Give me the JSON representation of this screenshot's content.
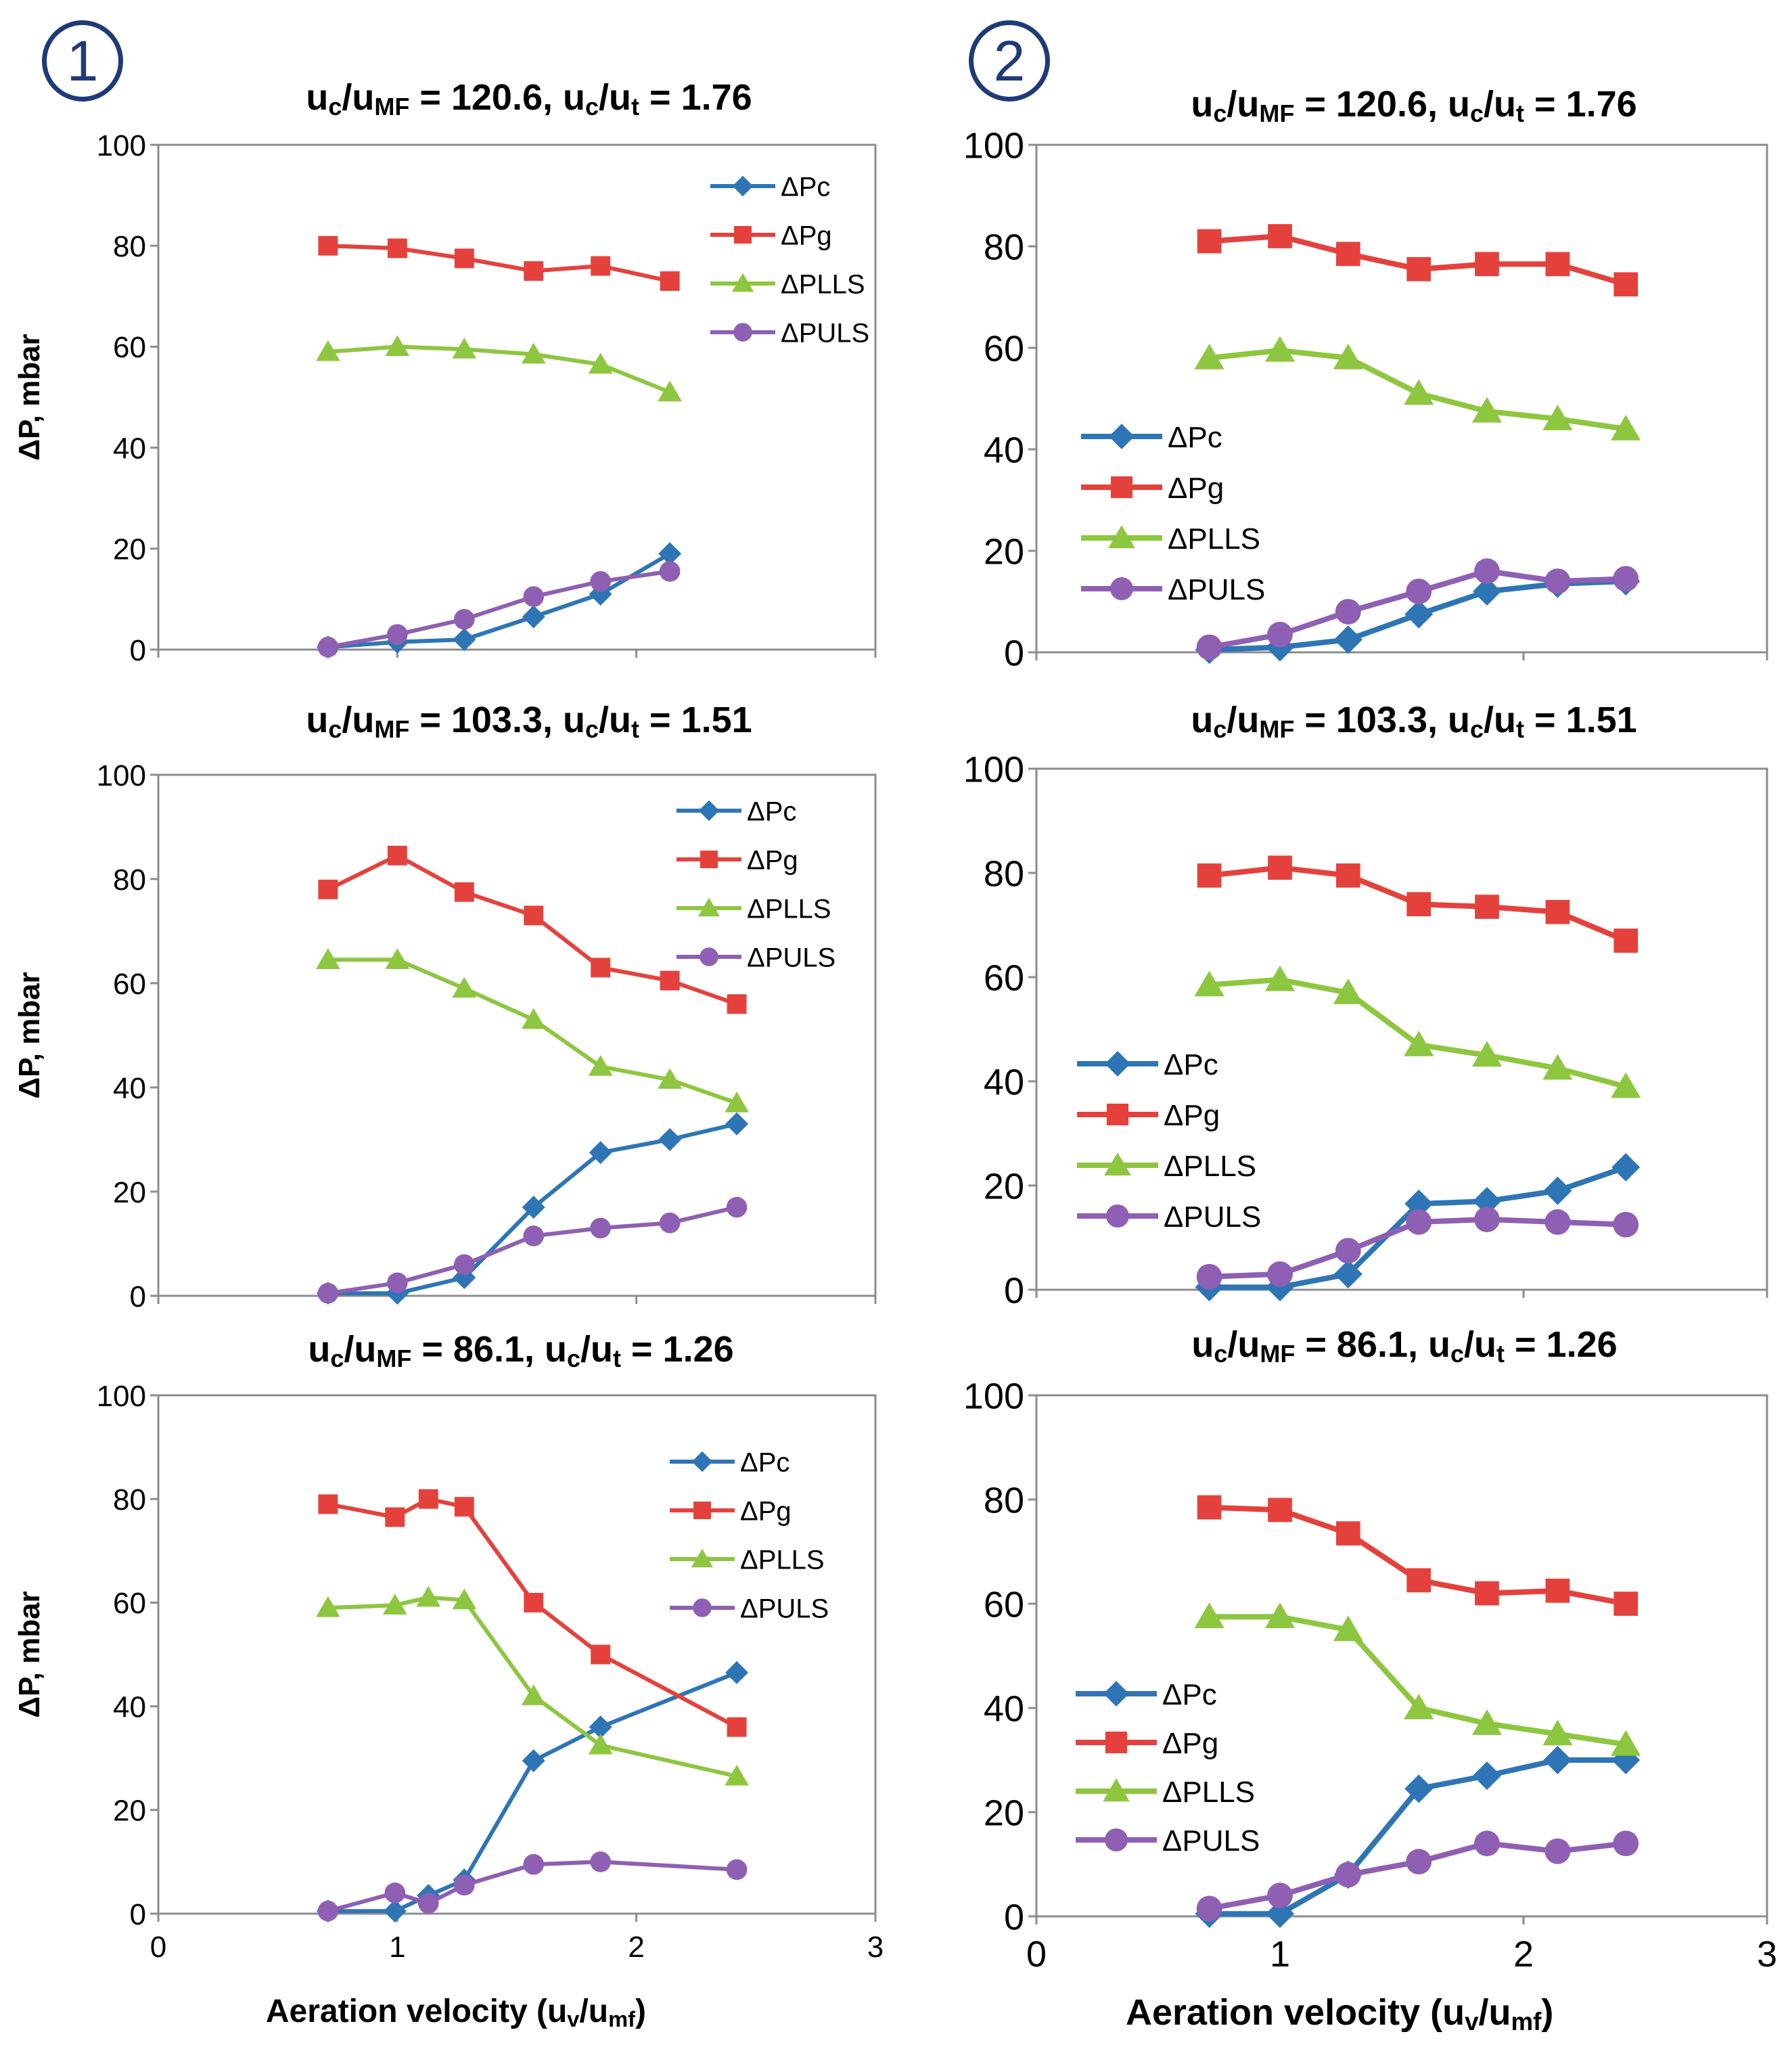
{
  "figure": {
    "column_labels": [
      "1",
      "2"
    ],
    "colors": {
      "dPc": "#2e75b6",
      "dPg": "#e5413c",
      "dPLLS": "#8dc63f",
      "dPULS": "#8e5fb3",
      "frame": "#8c8c8c",
      "text": "#000000"
    }
  },
  "chart_data": [
    {
      "type": "line",
      "panel": "col1-row1",
      "title": {
        "a": "u",
        "a_sub": "c",
        "b": "/u",
        "b_sub": "MF",
        "c": " = 120.6, u",
        "c_sub": "c",
        "d": "/u",
        "d_sub": "t",
        "e": " = 1.76"
      },
      "ylabel": "ΔP, mbar",
      "xlabel": "",
      "xlim": [
        0,
        3
      ],
      "ylim": [
        0,
        100
      ],
      "xticks": [
        "0",
        "1",
        "2",
        "3"
      ],
      "yticks": [
        "0",
        "20",
        "40",
        "60",
        "80",
        "100"
      ],
      "show_xticks": false,
      "legend": "top-right",
      "series": [
        {
          "name": "ΔPc",
          "marker": "diamond",
          "x": [
            0.71,
            1.0,
            1.28,
            1.57,
            1.85,
            2.14
          ],
          "y": [
            0.5,
            1.5,
            2,
            6.5,
            11,
            19
          ]
        },
        {
          "name": "ΔPg",
          "marker": "square",
          "x": [
            0.71,
            1.0,
            1.28,
            1.57,
            1.85,
            2.14
          ],
          "y": [
            80,
            79.5,
            77.5,
            75,
            76,
            73
          ]
        },
        {
          "name": "ΔPLLS",
          "marker": "triangle",
          "x": [
            0.71,
            1.0,
            1.28,
            1.57,
            1.85,
            2.14
          ],
          "y": [
            59,
            60,
            59.5,
            58.5,
            56.5,
            51
          ]
        },
        {
          "name": "ΔPULS",
          "marker": "circle",
          "x": [
            0.71,
            1.0,
            1.28,
            1.57,
            1.85,
            2.14
          ],
          "y": [
            0.5,
            3,
            6,
            10.5,
            13.5,
            15.5
          ]
        }
      ]
    },
    {
      "type": "line",
      "panel": "col2-row1",
      "title": {
        "a": "u",
        "a_sub": "c",
        "b": "/u",
        "b_sub": "MF",
        "c": " = 120.6, u",
        "c_sub": "c",
        "d": "/u",
        "d_sub": "t",
        "e": " = 1.76"
      },
      "ylabel": "",
      "xlabel": "",
      "xlim": [
        0,
        3
      ],
      "ylim": [
        0,
        100
      ],
      "xticks": [
        "0",
        "1",
        "2",
        "3"
      ],
      "yticks": [
        "0",
        "20",
        "40",
        "60",
        "80",
        "100"
      ],
      "show_xticks": false,
      "legend": "middle-left",
      "series": [
        {
          "name": "ΔPc",
          "marker": "diamond",
          "x": [
            0.71,
            1.0,
            1.28,
            1.57,
            1.85,
            2.14,
            2.42
          ],
          "y": [
            0.5,
            1,
            2.5,
            7.5,
            12,
            13.5,
            14
          ]
        },
        {
          "name": "ΔPg",
          "marker": "square",
          "x": [
            0.71,
            1.0,
            1.28,
            1.57,
            1.85,
            2.14,
            2.42
          ],
          "y": [
            81,
            82,
            78.5,
            75.5,
            76.5,
            76.5,
            72.5
          ]
        },
        {
          "name": "ΔPLLS",
          "marker": "triangle",
          "x": [
            0.71,
            1.0,
            1.28,
            1.57,
            1.85,
            2.14,
            2.42
          ],
          "y": [
            58,
            59.5,
            58,
            51,
            47.5,
            46,
            44
          ]
        },
        {
          "name": "ΔPULS",
          "marker": "circle",
          "x": [
            0.71,
            1.0,
            1.28,
            1.57,
            1.85,
            2.14,
            2.42
          ],
          "y": [
            1,
            3.5,
            8,
            12,
            16,
            14,
            14.5
          ]
        }
      ]
    },
    {
      "type": "line",
      "panel": "col1-row2",
      "title": {
        "a": "u",
        "a_sub": "c",
        "b": "/u",
        "b_sub": "MF",
        "c": " = 103.3, u",
        "c_sub": "c",
        "d": "/u",
        "d_sub": "t",
        "e": " = 1.51"
      },
      "ylabel": "ΔP, mbar",
      "xlabel": "",
      "xlim": [
        0,
        3
      ],
      "ylim": [
        0,
        100
      ],
      "xticks": [
        "0",
        "1",
        "2",
        "3"
      ],
      "yticks": [
        "0",
        "20",
        "40",
        "60",
        "80",
        "100"
      ],
      "show_xticks": false,
      "legend": "top-right",
      "series": [
        {
          "name": "ΔPc",
          "marker": "diamond",
          "x": [
            0.71,
            1.0,
            1.28,
            1.57,
            1.85,
            2.14,
            2.42
          ],
          "y": [
            0.5,
            0.5,
            3.5,
            17,
            27.5,
            30,
            33
          ]
        },
        {
          "name": "ΔPg",
          "marker": "square",
          "x": [
            0.71,
            1.0,
            1.28,
            1.57,
            1.85,
            2.14,
            2.42
          ],
          "y": [
            78,
            84.5,
            77.5,
            73,
            63,
            60.5,
            56
          ]
        },
        {
          "name": "ΔPLLS",
          "marker": "triangle",
          "x": [
            0.71,
            1.0,
            1.28,
            1.57,
            1.85,
            2.14,
            2.42
          ],
          "y": [
            64.5,
            64.5,
            59,
            53,
            44,
            41.5,
            37
          ]
        },
        {
          "name": "ΔPULS",
          "marker": "circle",
          "x": [
            0.71,
            1.0,
            1.28,
            1.57,
            1.85,
            2.14,
            2.42
          ],
          "y": [
            0.5,
            2.5,
            6,
            11.5,
            13,
            14,
            17
          ]
        }
      ]
    },
    {
      "type": "line",
      "panel": "col2-row2",
      "title": {
        "a": "u",
        "a_sub": "c",
        "b": "/u",
        "b_sub": "MF",
        "c": " = 103.3, u",
        "c_sub": "c",
        "d": "/u",
        "d_sub": "t",
        "e": " = 1.51"
      },
      "ylabel": "",
      "xlabel": "",
      "xlim": [
        0,
        3
      ],
      "ylim": [
        0,
        100
      ],
      "xticks": [
        "0",
        "1",
        "2",
        "3"
      ],
      "yticks": [
        "0",
        "20",
        "40",
        "60",
        "80",
        "100"
      ],
      "show_xticks": false,
      "legend": "middle-left",
      "series": [
        {
          "name": "ΔPc",
          "marker": "diamond",
          "x": [
            0.71,
            1.0,
            1.28,
            1.57,
            1.85,
            2.14,
            2.42
          ],
          "y": [
            0.5,
            0.5,
            3,
            16.5,
            17,
            19,
            23.5
          ]
        },
        {
          "name": "ΔPg",
          "marker": "square",
          "x": [
            0.71,
            1.0,
            1.28,
            1.57,
            1.85,
            2.14,
            2.42
          ],
          "y": [
            79.5,
            81,
            79.5,
            74,
            73.5,
            72.5,
            67
          ]
        },
        {
          "name": "ΔPLLS",
          "marker": "triangle",
          "x": [
            0.71,
            1.0,
            1.28,
            1.57,
            1.85,
            2.14,
            2.42
          ],
          "y": [
            58.5,
            59.5,
            57,
            47,
            45,
            42.5,
            39
          ]
        },
        {
          "name": "ΔPULS",
          "marker": "circle",
          "x": [
            0.71,
            1.0,
            1.28,
            1.57,
            1.85,
            2.14,
            2.42
          ],
          "y": [
            2.5,
            3,
            7.5,
            13,
            13.5,
            13,
            12.5
          ]
        }
      ]
    },
    {
      "type": "line",
      "panel": "col1-row3",
      "title": {
        "a": "u",
        "a_sub": "c",
        "b": "/u",
        "b_sub": "MF",
        "c": " = 86.1, u",
        "c_sub": "c",
        "d": "/u",
        "d_sub": "t",
        "e": " = 1.26"
      },
      "ylabel": "ΔP, mbar",
      "xlabel": {
        "a": "Aeration velocity (u",
        "a_sub": "v",
        "b": "/u",
        "b_sub": "mf",
        "c": ")"
      },
      "xlim": [
        0,
        3
      ],
      "ylim": [
        0,
        100
      ],
      "xticks": [
        "0",
        "1",
        "2",
        "3"
      ],
      "yticks": [
        "0",
        "20",
        "40",
        "60",
        "80",
        "100"
      ],
      "show_xticks": true,
      "legend": "top-right",
      "series": [
        {
          "name": "ΔPc",
          "marker": "diamond",
          "x": [
            0.71,
            0.99,
            1.13,
            1.28,
            1.57,
            1.85,
            2.42
          ],
          "y": [
            0.5,
            0.5,
            3.5,
            6.5,
            29.5,
            36,
            46.5
          ]
        },
        {
          "name": "ΔPg",
          "marker": "square",
          "x": [
            0.71,
            0.99,
            1.13,
            1.28,
            1.57,
            1.85,
            2.42
          ],
          "y": [
            79,
            76.5,
            80,
            78.5,
            60,
            50,
            36
          ]
        },
        {
          "name": "ΔPLLS",
          "marker": "triangle",
          "x": [
            0.71,
            0.99,
            1.13,
            1.28,
            1.57,
            1.85,
            2.42
          ],
          "y": [
            59,
            59.5,
            61,
            60.5,
            42,
            32.5,
            26.5
          ]
        },
        {
          "name": "ΔPULS",
          "marker": "circle",
          "x": [
            0.71,
            0.99,
            1.13,
            1.28,
            1.57,
            1.85,
            2.42
          ],
          "y": [
            0.5,
            4,
            2,
            5.5,
            9.5,
            10,
            8.5
          ]
        }
      ]
    },
    {
      "type": "line",
      "panel": "col2-row3",
      "title": {
        "a": "u",
        "a_sub": "c",
        "b": "/u",
        "b_sub": "MF",
        "c": " = 86.1, u",
        "c_sub": "c",
        "d": "/u",
        "d_sub": "t",
        "e": " = 1.26"
      },
      "ylabel": "",
      "xlabel": {
        "a": "Aeration velocity (u",
        "a_sub": "v",
        "b": "/u",
        "b_sub": "mf",
        "c": ")"
      },
      "xlim": [
        0,
        3
      ],
      "ylim": [
        0,
        100
      ],
      "xticks": [
        "0",
        "1",
        "2",
        "3"
      ],
      "yticks": [
        "0",
        "20",
        "40",
        "60",
        "80",
        "100"
      ],
      "show_xticks": true,
      "legend": "middle-left",
      "series": [
        {
          "name": "ΔPc",
          "marker": "diamond",
          "x": [
            0.71,
            1.0,
            1.28,
            1.57,
            1.85,
            2.14,
            2.42
          ],
          "y": [
            0.5,
            0.5,
            8,
            24.5,
            27,
            30,
            30
          ]
        },
        {
          "name": "ΔPg",
          "marker": "square",
          "x": [
            0.71,
            1.0,
            1.28,
            1.57,
            1.85,
            2.14,
            2.42
          ],
          "y": [
            78.5,
            78,
            73.5,
            64.5,
            62,
            62.5,
            60
          ]
        },
        {
          "name": "ΔPLLS",
          "marker": "triangle",
          "x": [
            0.71,
            1.0,
            1.28,
            1.57,
            1.85,
            2.14,
            2.42
          ],
          "y": [
            57.5,
            57.5,
            55,
            40,
            37,
            35,
            33
          ]
        },
        {
          "name": "ΔPULS",
          "marker": "circle",
          "x": [
            0.71,
            1.0,
            1.28,
            1.57,
            1.85,
            2.14,
            2.42
          ],
          "y": [
            1.5,
            4,
            8,
            10.5,
            14,
            12.5,
            14
          ]
        }
      ]
    }
  ]
}
